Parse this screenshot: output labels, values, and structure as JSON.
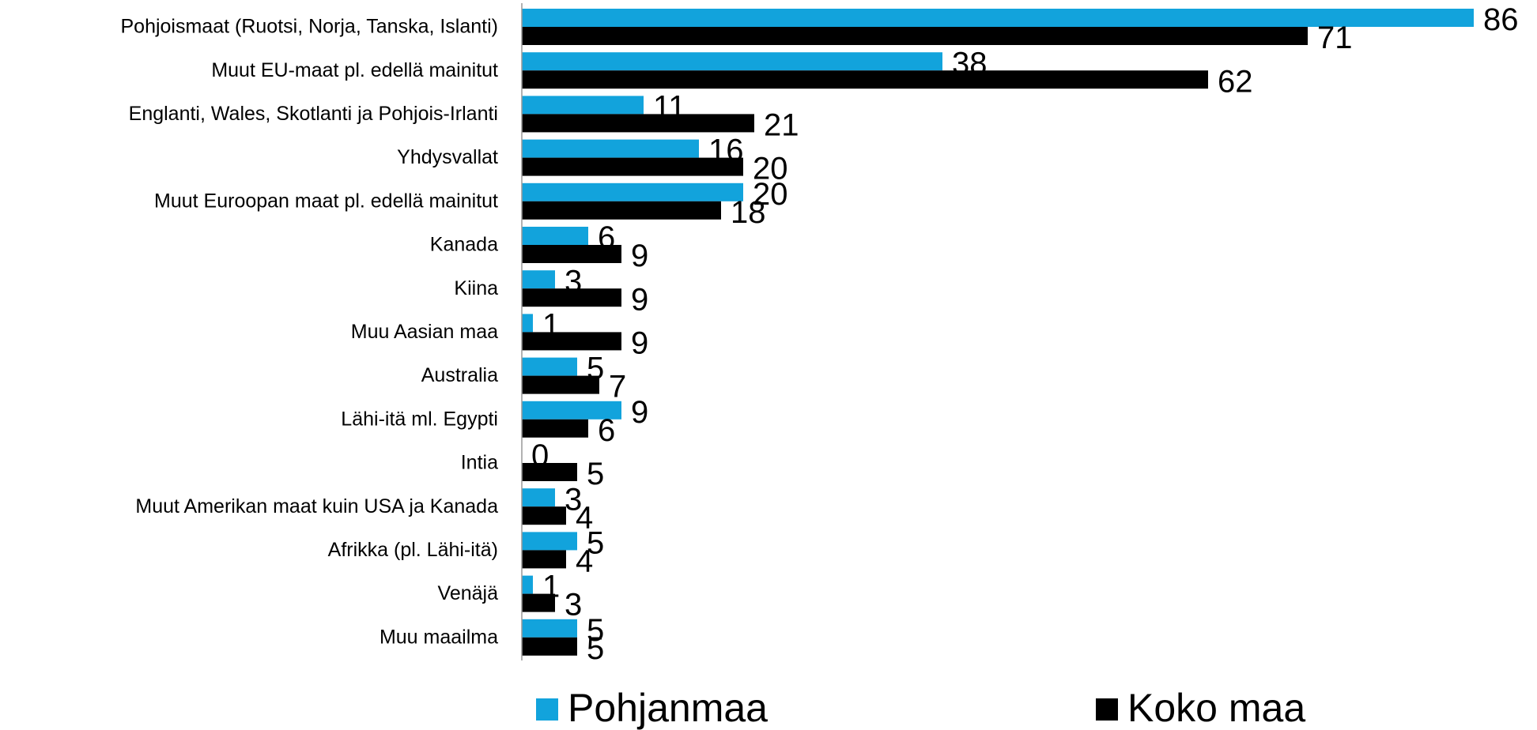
{
  "chart_data": {
    "type": "bar",
    "orientation": "horizontal",
    "categories": [
      "Pohjoismaat (Ruotsi, Norja, Tanska, Islanti)",
      "Muut EU-maat pl. edellä mainitut",
      "Englanti, Wales, Skotlanti ja Pohjois-Irlanti",
      "Yhdysvallat",
      "Muut Euroopan maat pl. edellä mainitut",
      "Kanada",
      "Kiina",
      "Muu Aasian maa",
      "Australia",
      "Lähi-itä ml. Egypti",
      "Intia",
      "Muut Amerikan maat kuin USA ja Kanada",
      "Afrikka (pl. Lähi-itä)",
      "Venäjä",
      "Muu maailma"
    ],
    "series": [
      {
        "name": "Pohjanmaa",
        "color": "#12a3dc",
        "values": [
          86,
          38,
          11,
          16,
          20,
          6,
          3,
          1,
          5,
          9,
          0,
          3,
          5,
          1,
          5
        ]
      },
      {
        "name": "Koko maa",
        "color": "#000000",
        "values": [
          71,
          62,
          21,
          20,
          18,
          9,
          9,
          9,
          7,
          6,
          5,
          4,
          4,
          3,
          5
        ]
      }
    ],
    "legend": "bottom"
  }
}
